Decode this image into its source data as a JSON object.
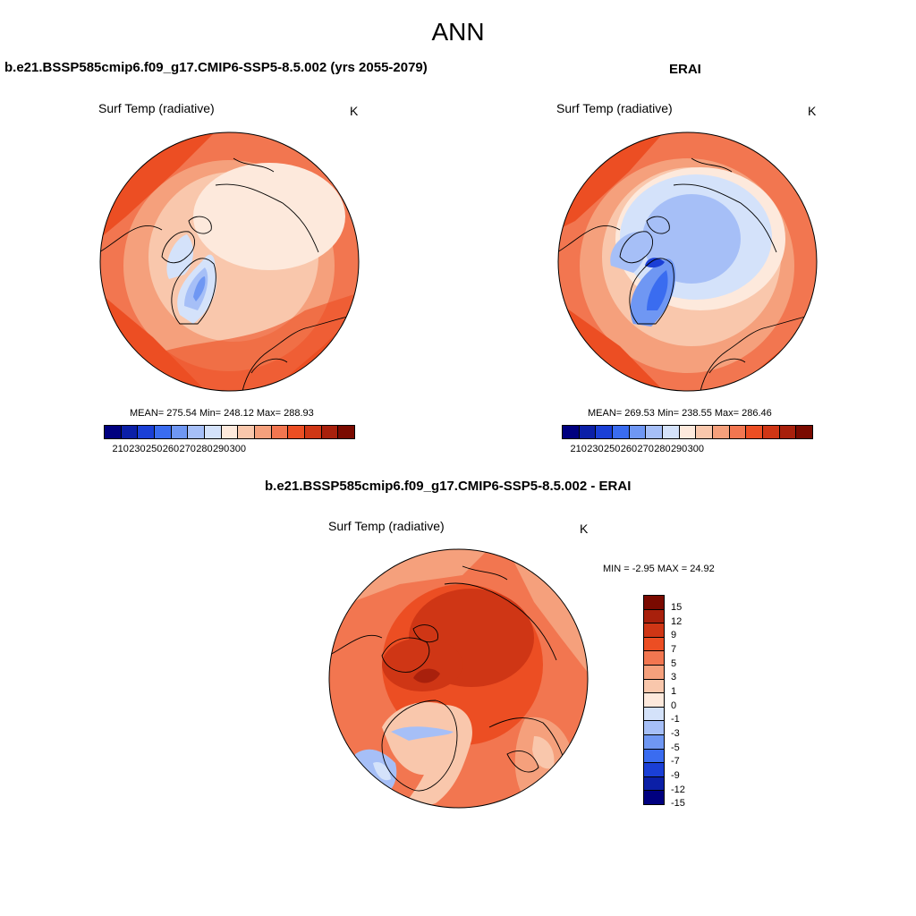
{
  "main_title": "ANN",
  "panels": [
    {
      "title": "b.e21.BSSP585cmip6.f09_g17.CMIP6-SSP5-8.5.002 (yrs 2055-2079)",
      "variable": "Surf Temp (radiative)",
      "unit": "K",
      "stats": "MEAN= 275.54  Min= 248.12  Max= 288.93"
    },
    {
      "title": "ERAI",
      "variable": "Surf Temp (radiative)",
      "unit": "K",
      "stats": "MEAN= 269.53  Min= 238.55  Max= 286.46"
    },
    {
      "title": "b.e21.BSSP585cmip6.f09_g17.CMIP6-SSP5-8.5.002 - ERAI",
      "variable": "Surf Temp (radiative)",
      "unit": "K",
      "stats": "MIN =  -2.95 MAX =  24.92"
    }
  ],
  "abs_colorbar": {
    "colors": [
      "#00007f",
      "#0b1fa7",
      "#1a3fd6",
      "#3a6cf0",
      "#6f97f3",
      "#a6bff7",
      "#d4e2fa",
      "#fde9dc",
      "#f9c7ac",
      "#f5a07c",
      "#f27650",
      "#ec4e23",
      "#cf3615",
      "#a8200c",
      "#7a0a00"
    ],
    "ticks": [
      "210",
      "230",
      "250",
      "260",
      "270",
      "280",
      "290",
      "300"
    ]
  },
  "diff_colorbar": {
    "colors": [
      "#7a0a00",
      "#a8200c",
      "#cf3615",
      "#ec4e23",
      "#f27650",
      "#f5a07c",
      "#f9c7ac",
      "#fde9dc",
      "#d4e2fa",
      "#a6bff7",
      "#6f97f3",
      "#3a6cf0",
      "#1a3fd6",
      "#0b1fa7",
      "#00007f"
    ],
    "ticks": [
      "15",
      "12",
      "9",
      "7",
      "5",
      "3",
      "1",
      "0",
      "-1",
      "-3",
      "-5",
      "-7",
      "-9",
      "-12",
      "-15"
    ]
  }
}
